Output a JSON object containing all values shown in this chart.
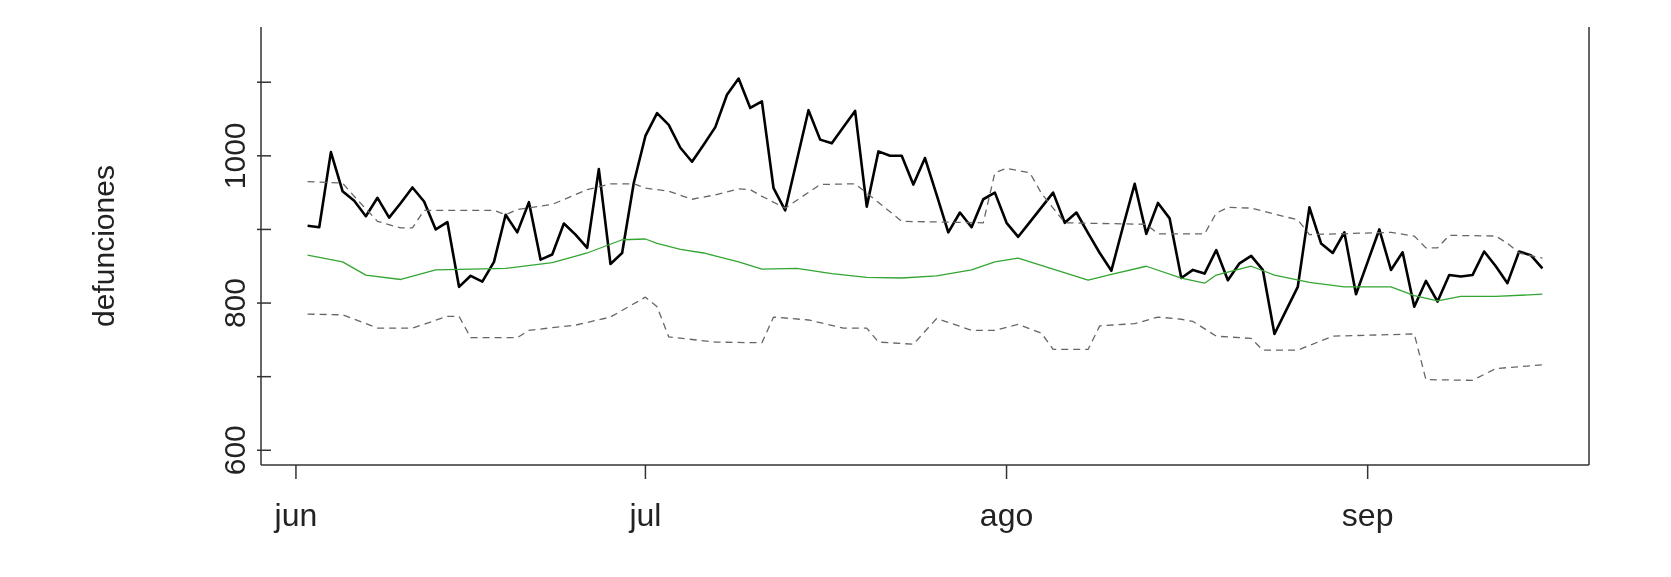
{
  "chart_data": {
    "type": "line",
    "ylabel": "defunciones",
    "xlim": [
      "--05-29",
      "--09-20"
    ],
    "xticks": [
      {
        "value": "--06-01",
        "label": "jun"
      },
      {
        "value": "--07-01",
        "label": "jul"
      },
      {
        "value": "--08-01",
        "label": "ago"
      },
      {
        "value": "--09-01",
        "label": "sep"
      }
    ],
    "ylim": [
      580,
      1175
    ],
    "yticks": [
      600,
      {
        "value": 700,
        "label": null
      },
      800,
      {
        "value": 900,
        "label": null
      },
      1000,
      {
        "value": 1100,
        "label": null
      }
    ],
    "marker": "none",
    "series": [
      {
        "color": "#000000",
        "line_style": "solid",
        "x": [
          "--06-02",
          "--06-03",
          "--06-04",
          "--06-05",
          "--06-06",
          "--06-07",
          "--06-08",
          "--06-09",
          "--06-10",
          "--06-11",
          "--06-12",
          "--06-13",
          "--06-14",
          "--06-15",
          "--06-16",
          "--06-17",
          "--06-18",
          "--06-19",
          "--06-20",
          "--06-21",
          "--06-22",
          "--06-23",
          "--06-24",
          "--06-25",
          "--06-26",
          "--06-27",
          "--06-28",
          "--06-29",
          "--06-30",
          "--07-01",
          "--07-02",
          "--07-03",
          "--07-04",
          "--07-05",
          "--07-06",
          "--07-07",
          "--07-08",
          "--07-09",
          "--07-10",
          "--07-11",
          "--07-12",
          "--07-13",
          "--07-14",
          "--07-15",
          "--07-16",
          "--07-17",
          "--07-18",
          "--07-19",
          "--07-20",
          "--07-21",
          "--07-22",
          "--07-23",
          "--07-24",
          "--07-25",
          "--07-26",
          "--07-27",
          "--07-28",
          "--07-29",
          "--07-30",
          "--07-31",
          "--08-01",
          "--08-02",
          "--08-03",
          "--08-04",
          "--08-05",
          "--08-06",
          "--08-07",
          "--08-08",
          "--08-09",
          "--08-10",
          "--08-11",
          "--08-12",
          "--08-13",
          "--08-14",
          "--08-15",
          "--08-16",
          "--08-17",
          "--08-18",
          "--08-19",
          "--08-20",
          "--08-21",
          "--08-22",
          "--08-23",
          "--08-24",
          "--08-25",
          "--08-26",
          "--08-27",
          "--08-28",
          "--08-29",
          "--08-30",
          "--08-31",
          "--09-01",
          "--09-02",
          "--09-03",
          "--09-04",
          "--09-05",
          "--09-06",
          "--09-07",
          "--09-08",
          "--09-09",
          "--09-10",
          "--09-11",
          "--09-12",
          "--09-13",
          "--09-14",
          "--09-15",
          "--09-16"
        ],
        "values": [
          905,
          903,
          1005,
          952,
          939,
          918,
          943,
          916,
          936,
          957,
          938,
          900,
          910,
          822,
          837,
          829,
          856,
          920,
          896,
          937,
          859,
          866,
          908,
          893,
          875,
          982,
          853,
          868,
          963,
          1027,
          1058,
          1042,
          1011,
          992,
          1015,
          1039,
          1083,
          1105,
          1065,
          1074,
          956,
          926,
          994,
          1062,
          1022,
          1017,
          1039,
          1061,
          931,
          1006,
          1000,
          1000,
          961,
          997,
          947,
          896,
          923,
          903,
          941,
          950,
          909,
          890,
          910,
          930,
          950,
          909,
          923,
          895,
          868,
          844,
          904,
          962,
          894,
          936,
          915,
          834,
          845,
          840,
          872,
          831,
          854,
          864,
          845,
          758,
          790,
          822,
          930,
          881,
          868,
          896,
          812,
          856,
          900,
          845,
          869,
          795,
          830,
          802,
          838,
          836,
          838,
          870,
          850,
          827,
          870,
          865,
          847
        ]
      },
      {
        "color": "#33a532",
        "line_style": "solid",
        "x": [
          "--06-02",
          "--06-05",
          "--06-07",
          "--06-10",
          "--06-13",
          "--06-16",
          "--06-19",
          "--06-23",
          "--06-26",
          "--06-29",
          "--07-01",
          "--07-02",
          "--07-04",
          "--07-06",
          "--07-09",
          "--07-11",
          "--07-14",
          "--07-17",
          "--07-20",
          "--07-23",
          "--07-26",
          "--07-29",
          "--07-31",
          "--08-02",
          "--08-05",
          "--08-08",
          "--08-10",
          "--08-13",
          "--08-16",
          "--08-18",
          "--08-19",
          "--08-22",
          "--08-24",
          "--08-27",
          "--08-30",
          "--09-03",
          "--09-05",
          "--09-07",
          "--09-09",
          "--09-12",
          "--09-16"
        ],
        "values": [
          865,
          856,
          838,
          832,
          845,
          846,
          847,
          855,
          868,
          886,
          887,
          881,
          873,
          868,
          856,
          846,
          847,
          840,
          835,
          834,
          837,
          845,
          856,
          861,
          846,
          831,
          839,
          850,
          834,
          827,
          838,
          850,
          838,
          828,
          822,
          822,
          810,
          803,
          809,
          809,
          812
        ]
      },
      {
        "color": "#666666",
        "line_style": "dashed",
        "x": [
          "--06-02",
          "--06-05",
          "--06-06",
          "--06-08",
          "--06-10",
          "--06-11",
          "--06-12",
          "--06-18",
          "--06-19",
          "--06-20",
          "--06-23",
          "--06-26",
          "--06-28",
          "--06-30",
          "--07-01",
          "--07-03",
          "--07-05",
          "--07-07",
          "--07-09",
          "--07-10",
          "--07-11",
          "--07-13",
          "--07-16",
          "--07-19",
          "--07-22",
          "--07-23",
          "--07-30",
          "--07-31",
          "--08-01",
          "--08-03",
          "--08-04",
          "--08-06",
          "--08-13",
          "--08-14",
          "--08-18",
          "--08-19",
          "--08-20",
          "--08-22",
          "--08-26",
          "--08-27",
          "--09-03",
          "--09-05",
          "--09-06",
          "--09-07",
          "--09-08",
          "--09-12",
          "--09-13",
          "--09-14",
          "--09-16"
        ],
        "values": [
          965,
          963,
          945,
          911,
          902,
          902,
          926,
          926,
          920,
          927,
          934,
          954,
          962,
          962,
          956,
          952,
          941,
          947,
          955,
          954,
          945,
          929,
          961,
          962,
          924,
          911,
          909,
          977,
          983,
          977,
          949,
          909,
          907,
          894,
          894,
          922,
          930,
          929,
          913,
          893,
          896,
          891,
          875,
          875,
          892,
          891,
          881,
          868,
          861
        ]
      },
      {
        "color": "#666666",
        "line_style": "dashed",
        "x": [
          "--06-02",
          "--06-05",
          "--06-08",
          "--06-11",
          "--06-14",
          "--06-15",
          "--06-16",
          "--06-20",
          "--06-21",
          "--06-25",
          "--06-28",
          "--07-01",
          "--07-02",
          "--07-03",
          "--07-07",
          "--07-11",
          "--07-12",
          "--07-15",
          "--07-18",
          "--07-20",
          "--07-21",
          "--07-24",
          "--07-26",
          "--07-29",
          "--07-31",
          "--08-02",
          "--08-04",
          "--08-05",
          "--08-08",
          "--08-09",
          "--08-12",
          "--08-14",
          "--08-16",
          "--08-17",
          "--08-19",
          "--08-22",
          "--08-23",
          "--08-26",
          "--08-29",
          "--09-05",
          "--09-06",
          "--09-10",
          "--09-12",
          "--09-16"
        ],
        "values": [
          785,
          784,
          766,
          766,
          782,
          782,
          753,
          753,
          763,
          770,
          781,
          808,
          795,
          754,
          747,
          746,
          781,
          777,
          766,
          766,
          747,
          744,
          779,
          763,
          763,
          771,
          759,
          737,
          737,
          769,
          772,
          781,
          778,
          775,
          755,
          752,
          736,
          736,
          755,
          758,
          696,
          695,
          711,
          716
        ]
      }
    ]
  }
}
